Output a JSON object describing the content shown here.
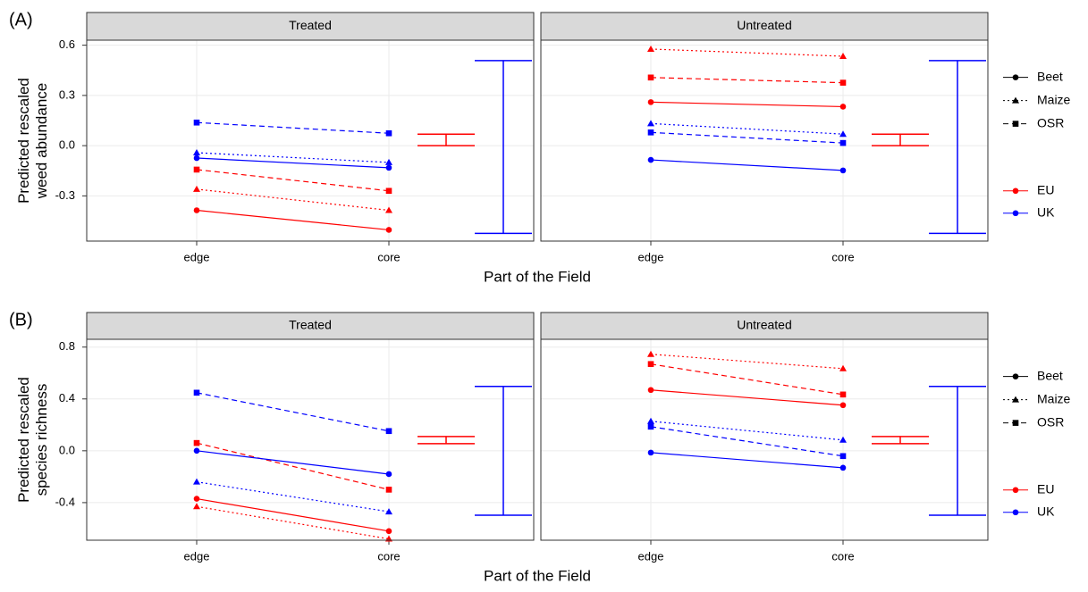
{
  "chart_data": [
    {
      "type": "line",
      "panel_label": "(A)",
      "ylabel": [
        "Predicted rescaled",
        "weed abundance"
      ],
      "xlabel": "Part of the Field",
      "categories": [
        "edge",
        "core"
      ],
      "ylim": [
        -0.57,
        0.63
      ],
      "yticks": [
        -0.3,
        {
          "value": 0,
          "label": "0.0"
        },
        0.3,
        0.6
      ],
      "grid": true,
      "linetype_legend": {
        "items": [
          "Beet",
          "Maize",
          "OSR"
        ],
        "dashes": [
          "solid",
          "dotted",
          "dashed"
        ],
        "markers": [
          "circle",
          "triangle",
          "square"
        ]
      },
      "color_legend": {
        "items": [
          "EU",
          "UK"
        ],
        "colors": [
          "#ff0000",
          "#0000ff"
        ]
      },
      "facets": [
        {
          "title": "Treated",
          "series": [
            {
              "crop": "Beet",
              "region": "EU",
              "values": [
                -0.386,
                -0.503
              ]
            },
            {
              "crop": "Maize",
              "region": "EU",
              "values": [
                -0.26,
                -0.386
              ]
            },
            {
              "crop": "OSR",
              "region": "EU",
              "values": [
                -0.143,
                -0.27
              ]
            },
            {
              "crop": "Beet",
              "region": "UK",
              "values": [
                -0.074,
                -0.132
              ]
            },
            {
              "crop": "Maize",
              "region": "UK",
              "values": [
                -0.042,
                -0.1
              ]
            },
            {
              "crop": "OSR",
              "region": "UK",
              "values": [
                0.138,
                0.074
              ]
            }
          ],
          "error_bars": [
            {
              "region": "EU",
              "low": 0.0,
              "high": 0.069
            },
            {
              "region": "UK",
              "low": -0.524,
              "high": 0.508
            }
          ]
        },
        {
          "title": "Untreated",
          "series": [
            {
              "crop": "Maize",
              "region": "EU",
              "values": [
                0.577,
                0.534
              ]
            },
            {
              "crop": "OSR",
              "region": "EU",
              "values": [
                0.407,
                0.376
              ]
            },
            {
              "crop": "Beet",
              "region": "EU",
              "values": [
                0.26,
                0.233
              ]
            },
            {
              "crop": "Maize",
              "region": "UK",
              "values": [
                0.132,
                0.069
              ]
            },
            {
              "crop": "OSR",
              "region": "UK",
              "values": [
                0.079,
                0.016
              ]
            },
            {
              "crop": "Beet",
              "region": "UK",
              "values": [
                -0.085,
                -0.148
              ]
            }
          ],
          "error_bars": [
            {
              "region": "EU",
              "low": 0.0,
              "high": 0.069
            },
            {
              "region": "UK",
              "low": -0.524,
              "high": 0.508
            }
          ]
        }
      ]
    },
    {
      "type": "line",
      "panel_label": "(B)",
      "ylabel": [
        "Predicted rescaled",
        "species richness"
      ],
      "xlabel": "Part of the Field",
      "categories": [
        "edge",
        "core"
      ],
      "ylim": [
        -0.69,
        0.86
      ],
      "yticks": [
        -0.4,
        {
          "value": 0,
          "label": "0.0"
        },
        0.4,
        0.8
      ],
      "grid": true,
      "linetype_legend": {
        "items": [
          "Beet",
          "Maize",
          "OSR"
        ],
        "dashes": [
          "solid",
          "dotted",
          "dashed"
        ],
        "markers": [
          "circle",
          "triangle",
          "square"
        ]
      },
      "color_legend": {
        "items": [
          "EU",
          "UK"
        ],
        "colors": [
          "#ff0000",
          "#0000ff"
        ]
      },
      "facets": [
        {
          "title": "Treated",
          "series": [
            {
              "crop": "OSR",
              "region": "UK",
              "values": [
                0.448,
                0.152
              ]
            },
            {
              "crop": "OSR",
              "region": "EU",
              "values": [
                0.06,
                -0.3
              ]
            },
            {
              "crop": "Beet",
              "region": "UK",
              "values": [
                0.0,
                -0.18
              ]
            },
            {
              "crop": "Maize",
              "region": "UK",
              "values": [
                -0.24,
                -0.47
              ]
            },
            {
              "crop": "Beet",
              "region": "EU",
              "values": [
                -0.37,
                -0.62
              ]
            },
            {
              "crop": "Maize",
              "region": "EU",
              "values": [
                -0.43,
                -0.68
              ]
            }
          ],
          "error_bars": [
            {
              "region": "EU",
              "low": 0.055,
              "high": 0.11
            },
            {
              "region": "UK",
              "low": -0.497,
              "high": 0.497
            }
          ]
        },
        {
          "title": "Untreated",
          "series": [
            {
              "crop": "Maize",
              "region": "EU",
              "values": [
                0.745,
                0.634
              ]
            },
            {
              "crop": "OSR",
              "region": "EU",
              "values": [
                0.669,
                0.434
              ]
            },
            {
              "crop": "Beet",
              "region": "EU",
              "values": [
                0.469,
                0.352
              ]
            },
            {
              "crop": "Maize",
              "region": "UK",
              "values": [
                0.228,
                0.083
              ]
            },
            {
              "crop": "OSR",
              "region": "UK",
              "values": [
                0.186,
                -0.041
              ]
            },
            {
              "crop": "Beet",
              "region": "UK",
              "values": [
                -0.014,
                -0.131
              ]
            }
          ],
          "error_bars": [
            {
              "region": "EU",
              "low": 0.055,
              "high": 0.11
            },
            {
              "region": "UK",
              "low": -0.497,
              "high": 0.497
            }
          ]
        }
      ]
    }
  ]
}
